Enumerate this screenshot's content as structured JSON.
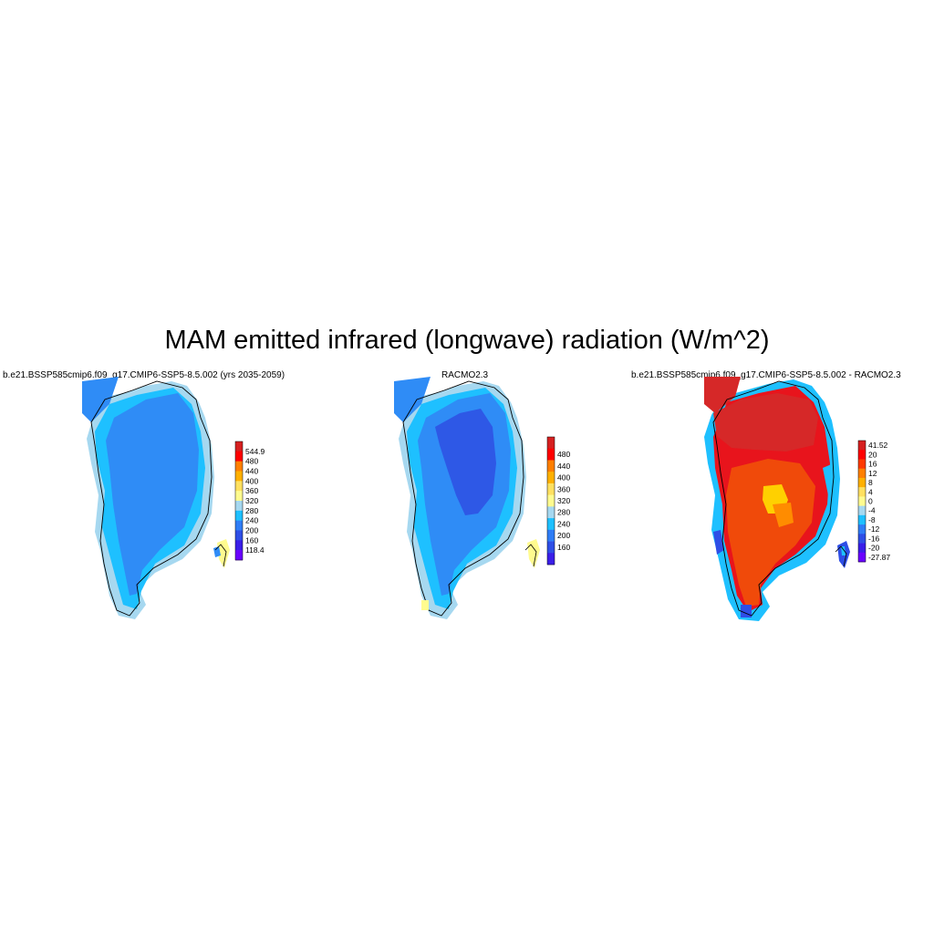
{
  "title": "MAM emitted infrared (longwave) radiation (W/m^2)",
  "panels": [
    {
      "title": "b.e21.BSSP585cmip6.f09_g17.CMIP6-SSP5-8.5.002 (yrs 2035-2059)",
      "colorbar": {
        "labels": [
          "544.9",
          "480",
          "440",
          "400",
          "360",
          "320",
          "280",
          "240",
          "200",
          "160",
          "118.4"
        ],
        "colors": [
          "#d62020",
          "#ff0000",
          "#ff7f00",
          "#ffb000",
          "#ffe060",
          "#fffb8f",
          "#a6d8f0",
          "#1ec0ff",
          "#2f7df6",
          "#2e4ee6",
          "#3a1ee8",
          "#6a00ff"
        ]
      },
      "dominant_colors": [
        "#2f8cf6",
        "#1ec0ff",
        "#a6d8f0"
      ]
    },
    {
      "title": "RACMO2.3",
      "colorbar": {
        "labels": [
          "480",
          "440",
          "400",
          "360",
          "320",
          "280",
          "240",
          "200",
          "160"
        ],
        "colors": [
          "#d62020",
          "#ff0000",
          "#ff7f00",
          "#ffb000",
          "#ffe060",
          "#fffb8f",
          "#a6d8f0",
          "#1ec0ff",
          "#2f7df6",
          "#2e4ee6",
          "#3a1ee8"
        ]
      },
      "dominant_colors": [
        "#2e58e6",
        "#2f8cf6",
        "#1ec0ff",
        "#a6d8f0"
      ]
    },
    {
      "title": "b.e21.BSSP585cmip6.f09_g17.CMIP6-SSP5-8.5.002 - RACMO2.3",
      "colorbar": {
        "labels": [
          "41.52",
          "20",
          "16",
          "12",
          "8",
          "4",
          "0",
          "-4",
          "-8",
          "-12",
          "-16",
          "-20",
          "-27.87"
        ],
        "colors": [
          "#d62020",
          "#ff0000",
          "#ff3a00",
          "#ff7f00",
          "#ffb000",
          "#ffe060",
          "#fffb8f",
          "#a6d8f0",
          "#1ec0ff",
          "#2f7df6",
          "#2e4ee6",
          "#3a1ee8",
          "#6a00ff"
        ]
      },
      "dominant_colors": [
        "#e8141c",
        "#f04a0a",
        "#d62828",
        "#ff8c00",
        "#ffd000"
      ]
    }
  ]
}
